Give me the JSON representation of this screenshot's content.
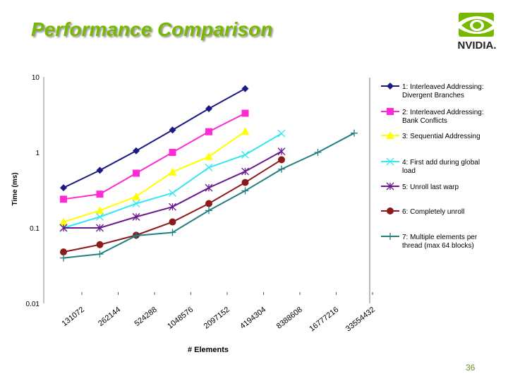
{
  "slide": {
    "title": "Performance Comparison",
    "logo_text": "NVIDIA.",
    "page_number": "36"
  },
  "colors": {
    "title": "#76b900",
    "logo_green": "#76b900"
  },
  "icons": [
    "nvidia-eye-logo-icon"
  ],
  "chart_data": {
    "type": "line",
    "xlabel": "# Elements",
    "ylabel": "Time (ms)",
    "y_scale": "log",
    "ylim": [
      0.01,
      10
    ],
    "y_ticks": [
      {
        "value": 10,
        "label": "10"
      },
      {
        "value": 1,
        "label": "1"
      },
      {
        "value": 0.1,
        "label": "0.1"
      },
      {
        "value": 0.01,
        "label": "0.01"
      }
    ],
    "categories": [
      "131072",
      "262144",
      "524288",
      "1048576",
      "2097152",
      "4194304",
      "8388608",
      "16777216",
      "33554432"
    ],
    "grid": false,
    "legend_position": "right",
    "series": [
      {
        "name": "1: Interleaved Addressing: Divergent Branches",
        "color": "#1a1a80",
        "marker": "diamond",
        "values": [
          0.34,
          0.58,
          1.05,
          1.98,
          3.8,
          7.0,
          null,
          null,
          null
        ]
      },
      {
        "name": "2: Interleaved Addressing: Bank Conflicts",
        "color": "#ff2ad4",
        "marker": "square",
        "values": [
          0.24,
          0.28,
          0.53,
          1.0,
          1.88,
          3.3,
          null,
          null,
          null
        ]
      },
      {
        "name": "3: Sequential Addressing",
        "color": "#ffff00",
        "marker": "triangle",
        "values": [
          0.12,
          0.17,
          0.26,
          0.55,
          0.88,
          1.9,
          null,
          null,
          null
        ]
      },
      {
        "name": "4: First add during global load",
        "color": "#33e6f0",
        "marker": "x",
        "values": [
          0.1,
          0.14,
          0.21,
          0.29,
          0.63,
          0.93,
          1.78,
          null,
          null
        ]
      },
      {
        "name": "5: Unroll last warp",
        "color": "#6a1a8c",
        "marker": "star",
        "values": [
          0.1,
          0.1,
          0.14,
          0.19,
          0.34,
          0.56,
          1.03,
          null,
          null
        ]
      },
      {
        "name": "6: Completely unroll",
        "color": "#8b1a1a",
        "marker": "circle",
        "values": [
          0.048,
          0.06,
          0.08,
          0.12,
          0.21,
          0.4,
          0.8,
          null,
          null
        ]
      },
      {
        "name": "7: Multiple elements per thread (max 64 blocks)",
        "color": "#208080",
        "marker": "plus",
        "values": [
          0.04,
          0.045,
          0.079,
          0.087,
          0.17,
          0.31,
          0.6,
          1.0,
          1.8
        ]
      }
    ]
  }
}
